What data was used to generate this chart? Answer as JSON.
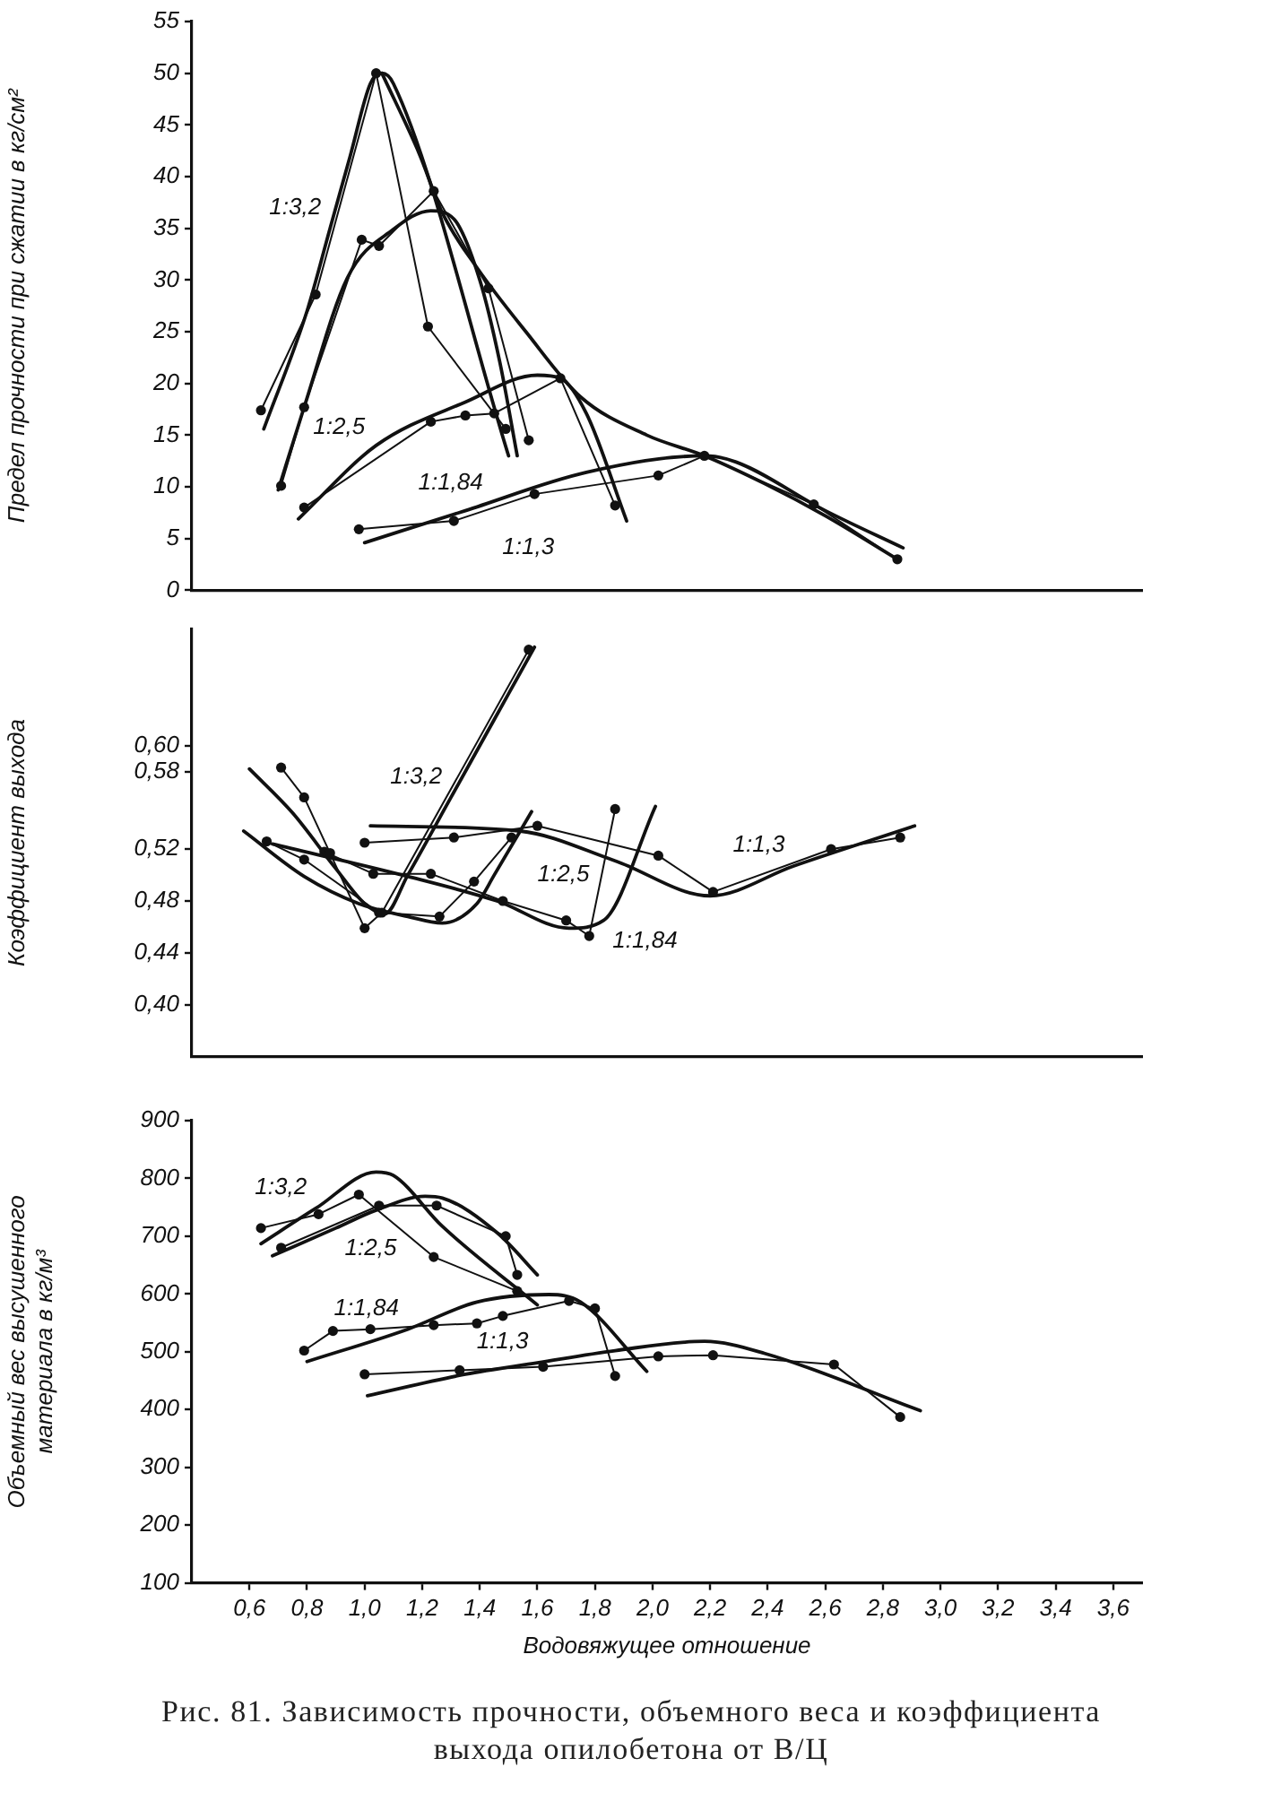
{
  "chart_data": [
    {
      "type": "line",
      "ylabel": "Предел прочности при сжатии в кг/см²",
      "xlim": [
        0.4,
        3.7
      ],
      "ylim": [
        0,
        55
      ],
      "yticks": [
        0,
        5,
        10,
        15,
        20,
        25,
        30,
        35,
        40,
        45,
        50,
        55
      ],
      "tick_labels": "y",
      "series": [
        {
          "color": "#111111",
          "marker": "circle",
          "x": [
            0.64,
            0.83,
            1.04,
            1.22,
            1.49
          ],
          "values": [
            17.4,
            28.6,
            50,
            25.5,
            15.6
          ]
        },
        {
          "color": "#111111",
          "marker": "none",
          "x": [
            0.65,
            0.8,
            0.88,
            0.95,
            1.02,
            1.06,
            1.1,
            1.5
          ],
          "values": [
            15.6,
            27,
            35,
            42,
            49,
            50,
            49,
            13
          ]
        },
        {
          "color": "#111111",
          "marker": "circle",
          "x": [
            0.71,
            0.79,
            0.99,
            1.05,
            1.24,
            1.43,
            1.57
          ],
          "values": [
            10.1,
            17.7,
            33.9,
            33.3,
            38.6,
            29.2,
            14.5
          ]
        },
        {
          "color": "#111111",
          "marker": "none",
          "x": [
            0.7,
            0.79,
            0.94,
            1.1,
            1.23,
            1.31,
            1.4,
            1.47,
            1.53
          ],
          "values": [
            9.7,
            17.7,
            30.2,
            34.9,
            36.7,
            35.9,
            30,
            22,
            13
          ]
        },
        {
          "color": "#111111",
          "marker": "none",
          "x": [
            1.06,
            1.19,
            1.27,
            1.39,
            1.56,
            1.75,
            1.98,
            2.18,
            2.39,
            2.6,
            2.85
          ],
          "values": [
            50,
            42.2,
            36.5,
            31.2,
            25,
            18.7,
            15,
            13,
            10.3,
            7.2,
            3
          ]
        },
        {
          "color": "#111111",
          "marker": "circle",
          "x": [
            0.79,
            1.23,
            1.35,
            1.45,
            1.68,
            1.87
          ],
          "values": [
            8,
            16.3,
            16.9,
            17.1,
            20.5,
            8.2
          ]
        },
        {
          "color": "#111111",
          "marker": "none",
          "x": [
            0.77,
            1.04,
            1.35,
            1.6,
            1.68,
            1.77,
            1.91
          ],
          "values": [
            6.9,
            14,
            18.2,
            20.8,
            20.5,
            17.1,
            6.7
          ]
        },
        {
          "color": "#111111",
          "marker": "circle",
          "x": [
            0.98,
            1.31,
            1.59,
            2.02,
            2.18,
            2.56,
            2.85
          ],
          "values": [
            5.9,
            6.7,
            9.3,
            11.1,
            13,
            8.3,
            3
          ]
        },
        {
          "color": "#111111",
          "marker": "none",
          "x": [
            1,
            1.35,
            1.77,
            2.18,
            2.29,
            2.6,
            2.87
          ],
          "values": [
            4.6,
            7.7,
            11.4,
            13,
            12.4,
            7.7,
            4.1
          ]
        }
      ],
      "annotations": [
        {
          "text": "1:3,2",
          "x": 0.88,
          "y": 35
        },
        {
          "text": "1:2,5",
          "x": 0.79,
          "y": 17.7
        },
        {
          "text": "1:1,84",
          "x": 1.04,
          "y": 14
        },
        {
          "text": "1:1,3",
          "x": 1.35,
          "y": 7.7
        }
      ]
    },
    {
      "type": "line",
      "ylabel": "Коэффициент выхода",
      "xlim": [
        0.4,
        3.7
      ],
      "ylim": [
        0.36,
        0.69
      ],
      "yticks": [
        {
          "value": 0.4,
          "label": "0,40"
        },
        {
          "value": 0.44,
          "label": "0,44"
        },
        {
          "value": 0.48,
          "label": "0,48"
        },
        {
          "value": 0.52,
          "label": "0,52"
        },
        {
          "value": 0.58,
          "label": "0,58"
        },
        {
          "value": 0.6,
          "label": "0,60"
        }
      ],
      "tick_labels": "y",
      "series": [
        {
          "color": "#111111",
          "marker": "circle",
          "x": [
            0.71,
            0.79,
            0.88,
            1,
            1.06,
            1.57
          ],
          "values": [
            0.583,
            0.56,
            0.517,
            0.459,
            0.471,
            0.674
          ]
        },
        {
          "color": "#111111",
          "marker": "none",
          "x": [
            0.6,
            0.75,
            0.9,
            1,
            1.07,
            1.15,
            1.3,
            1.45,
            1.59
          ],
          "values": [
            0.582,
            0.548,
            0.505,
            0.478,
            0.47,
            0.5,
            0.56,
            0.62,
            0.676
          ]
        },
        {
          "color": "#111111",
          "marker": "circle",
          "x": [
            0.66,
            0.79,
            1.05,
            1.26,
            1.38,
            1.51
          ],
          "values": [
            0.526,
            0.512,
            0.471,
            0.468,
            0.495,
            0.529
          ]
        },
        {
          "color": "#111111",
          "marker": "none",
          "x": [
            0.58,
            0.79,
            0.98,
            1.15,
            1.27,
            1.39,
            1.45,
            1.58
          ],
          "values": [
            0.534,
            0.499,
            0.478,
            0.468,
            0.463,
            0.478,
            0.5,
            0.549
          ]
        },
        {
          "color": "#111111",
          "marker": "circle",
          "x": [
            0.86,
            1.03,
            1.23,
            1.48,
            1.7,
            1.78,
            1.87
          ],
          "values": [
            0.518,
            0.501,
            0.501,
            0.48,
            0.465,
            0.453,
            0.551
          ]
        },
        {
          "color": "#111111",
          "marker": "none",
          "x": [
            0.68,
            1.15,
            1.46,
            1.71,
            1.83,
            2.01
          ],
          "values": [
            0.524,
            0.499,
            0.48,
            0.459,
            0.465,
            0.553
          ]
        },
        {
          "color": "#111111",
          "marker": "circle",
          "x": [
            1,
            1.31,
            1.6,
            2.02,
            2.21,
            2.62,
            2.86
          ],
          "values": [
            0.525,
            0.529,
            0.538,
            0.515,
            0.487,
            0.52,
            0.529
          ]
        },
        {
          "color": "#111111",
          "marker": "none",
          "x": [
            1.02,
            1.54,
            1.87,
            2.2,
            2.49,
            2.91
          ],
          "values": [
            0.538,
            0.534,
            0.511,
            0.484,
            0.507,
            0.538
          ]
        }
      ],
      "annotations": [
        {
          "text": "1:3,2",
          "x": 1.3,
          "y": 0.56
        },
        {
          "text": "1:2,5",
          "x": 1.45,
          "y": 0.5
        },
        {
          "text": "1:1,84",
          "x": 1.83,
          "y": 0.465
        },
        {
          "text": "1:1,3",
          "x": 2.49,
          "y": 0.507
        }
      ]
    },
    {
      "type": "line",
      "ylabel": "Объемный вес высушенного материала в кг/м³",
      "xlabel": "Водовяжущее отношение",
      "xlim": [
        0.4,
        3.7
      ],
      "ylim": [
        100,
        900
      ],
      "yticks": [
        100,
        200,
        300,
        400,
        500,
        600,
        700,
        800,
        900
      ],
      "xticks": [
        {
          "value": 0.6,
          "label": "0,6"
        },
        {
          "value": 0.8,
          "label": "0,8"
        },
        {
          "value": 1,
          "label": "1,0"
        },
        {
          "value": 1.2,
          "label": "1,2"
        },
        {
          "value": 1.4,
          "label": "1,4"
        },
        {
          "value": 1.6,
          "label": "1,6"
        },
        {
          "value": 1.8,
          "label": "1,8"
        },
        {
          "value": 2,
          "label": "2,0"
        },
        {
          "value": 2.2,
          "label": "2,2"
        },
        {
          "value": 2.4,
          "label": "2,4"
        },
        {
          "value": 2.6,
          "label": "2,6"
        },
        {
          "value": 2.8,
          "label": "2,8"
        },
        {
          "value": 3,
          "label": "3,0"
        },
        {
          "value": 3.2,
          "label": "3,2"
        },
        {
          "value": 3.4,
          "label": "3,4"
        },
        {
          "value": 3.6,
          "label": "3,6"
        }
      ],
      "series": [
        {
          "color": "#111111",
          "marker": "circle",
          "x": [
            0.64,
            0.84,
            0.98,
            1.24,
            1.53
          ],
          "values": [
            714,
            738,
            772,
            664,
            605
          ]
        },
        {
          "color": "#111111",
          "marker": "none",
          "x": [
            0.64,
            0.83,
            1.04,
            1.1,
            1.27,
            1.6
          ],
          "values": [
            687,
            748,
            811,
            805,
            717,
            581
          ]
        },
        {
          "color": "#111111",
          "marker": "circle",
          "x": [
            0.71,
            1.05,
            1.25,
            1.49,
            1.53
          ],
          "values": [
            680,
            753,
            753,
            700,
            633
          ]
        },
        {
          "color": "#111111",
          "marker": "none",
          "x": [
            0.68,
            0.9,
            1.04,
            1.21,
            1.27,
            1.46,
            1.6
          ],
          "values": [
            666,
            714,
            745,
            769,
            766,
            706,
            633
          ]
        },
        {
          "color": "#111111",
          "marker": "circle",
          "x": [
            0.79,
            0.89,
            1.02,
            1.24,
            1.39,
            1.48,
            1.71,
            1.8,
            1.87
          ],
          "values": [
            502,
            536,
            539,
            546,
            549,
            562,
            588,
            575,
            458
          ]
        },
        {
          "color": "#111111",
          "marker": "none",
          "x": [
            0.8,
            1.15,
            1.39,
            1.64,
            1.75,
            1.98
          ],
          "values": [
            483,
            539,
            586,
            599,
            586,
            466
          ]
        },
        {
          "color": "#111111",
          "marker": "circle",
          "x": [
            1,
            1.33,
            1.62,
            2.02,
            2.21,
            2.63,
            2.86
          ],
          "values": [
            461,
            468,
            474,
            492,
            494,
            478,
            387
          ]
        },
        {
          "color": "#111111",
          "marker": "none",
          "x": [
            1.01,
            1.35,
            1.6,
            1.87,
            2.18,
            2.39,
            2.93
          ],
          "values": [
            424,
            461,
            481,
            502,
            518,
            497,
            398
          ]
        }
      ],
      "annotations": [
        {
          "text": "1:3,2",
          "x": 0.83,
          "y": 748
        },
        {
          "text": "1:2,5",
          "x": 0.9,
          "y": 714
        },
        {
          "text": "1:1,84",
          "x": 1.15,
          "y": 539
        },
        {
          "text": "1:1,3",
          "x": 1.6,
          "y": 481
        },
        "Рис. 81. Зависимость прочности, объемного веса и коэффициента выхода опилобетона от В/Ц"
      ]
    }
  ]
}
